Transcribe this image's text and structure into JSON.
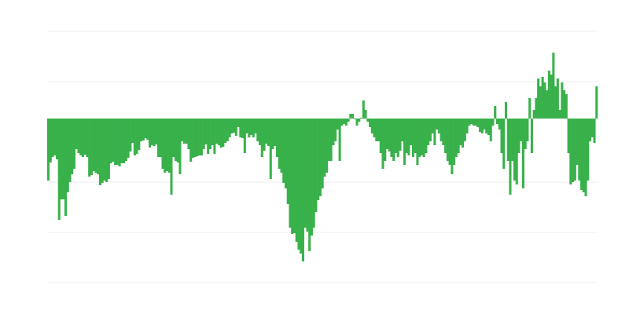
{
  "chart_data": {
    "type": "bar",
    "title": "",
    "xlabel": "",
    "ylabel": "",
    "ylim": [
      -20.9,
      11.1
    ],
    "gridlines": [
      11.1,
      4.7,
      -8.1,
      -14.5,
      -20.9
    ],
    "grid": true,
    "legend": "none",
    "colors": {
      "bar": "#39b14b",
      "grid": "#eeeeee"
    },
    "values": [
      -7.9,
      -5.6,
      -4.9,
      -4.7,
      -5.2,
      -12.9,
      -10.3,
      -10.3,
      -12.4,
      -9.4,
      -8.1,
      -7.1,
      -6.4,
      -3.9,
      -4.4,
      -4.7,
      -4.9,
      -4.6,
      -4.9,
      -7.4,
      -7.2,
      -6.7,
      -6.9,
      -7.1,
      -8.5,
      -8.2,
      -7.9,
      -8.1,
      -7.7,
      -5.7,
      -5.5,
      -5.9,
      -5.9,
      -6.1,
      -5.7,
      -5.7,
      -5.4,
      -5.0,
      -4.2,
      -3.1,
      -4.7,
      -4.5,
      -4.0,
      -2.9,
      -2.8,
      -2.5,
      -2.7,
      -3.7,
      -3.4,
      -3.5,
      -3.3,
      -4.9,
      -4.9,
      -6.4,
      -6.9,
      -6.7,
      -6.9,
      -9.7,
      -4.9,
      -5.4,
      -5.6,
      -7.1,
      -2.9,
      -3.2,
      -3.2,
      -3.9,
      -5.5,
      -5.0,
      -4.9,
      -4.8,
      -4.7,
      -4.7,
      -3.9,
      -3.3,
      -4.5,
      -3.9,
      -3.4,
      -4.5,
      -3.2,
      -3.4,
      -3.7,
      -3.6,
      -3.1,
      -2.9,
      -2.4,
      -1.9,
      -1.8,
      -2.2,
      -1.1,
      -2.4,
      -2.5,
      -4.4,
      -1.9,
      -2.4,
      -2.1,
      -2.4,
      -1.9,
      -2.9,
      -3.4,
      -4.9,
      -4.1,
      -3.2,
      -3.5,
      -7.7,
      -3.9,
      -3.5,
      -4.9,
      -6.4,
      -6.9,
      -8.2,
      -8.9,
      -10.9,
      -13.9,
      -14.7,
      -14.6,
      -15.7,
      -16.7,
      -17.2,
      -18.2,
      -13.9,
      -14.4,
      -16.9,
      -14.9,
      -13.9,
      -11.9,
      -10.4,
      -9.9,
      -8.9,
      -7.4,
      -6.9,
      -5.4,
      -5.4,
      -3.4,
      -2.9,
      -1.4,
      -5.4,
      -0.9,
      -0.7,
      -0.9,
      -0.4,
      0.6,
      0.6,
      -0.1,
      -0.9,
      -0.4,
      0.1,
      2.3,
      1.1,
      -0.4,
      -1.1,
      -1.9,
      -2.4,
      -2.9,
      -2.9,
      -4.4,
      -6.4,
      -5.4,
      -3.9,
      -4.2,
      -4.9,
      -5.4,
      -4.4,
      -4.9,
      -4.1,
      -2.9,
      -5.9,
      -4.4,
      -4.7,
      -3.4,
      -4.9,
      -4.4,
      -5.9,
      -4.9,
      -4.7,
      -4.9,
      -4.4,
      -3.4,
      -2.9,
      -1.9,
      -3.4,
      -1.4,
      -1.9,
      -2.9,
      -3.4,
      -4.4,
      -5.4,
      -5.9,
      -7.1,
      -5.9,
      -4.9,
      -4.4,
      -3.4,
      -3.7,
      -2.9,
      -1.9,
      -0.9,
      -0.7,
      -0.9,
      -0.9,
      -1.1,
      -1.7,
      -1.9,
      -1.4,
      -1.9,
      -2.1,
      -2.9,
      -0.9,
      1.6,
      -0.7,
      -1.4,
      -4.4,
      -6.4,
      2.1,
      -5.4,
      -9.7,
      -5.4,
      -7.9,
      -8.4,
      -4.4,
      -2.9,
      -8.9,
      -3.9,
      -2.9,
      2.6,
      -4.4,
      1.1,
      2.6,
      5.1,
      4.1,
      5.3,
      4.6,
      3.6,
      6.1,
      5.6,
      8.4,
      4.1,
      5.1,
      1.1,
      4.6,
      3.6,
      3.1,
      -4.4,
      -8.4,
      -8.1,
      -7.9,
      -5.9,
      -7.9,
      -9.1,
      -9.4,
      -9.9,
      -7.9,
      -2.9,
      -2.4,
      -3.1,
      4.1
    ]
  }
}
